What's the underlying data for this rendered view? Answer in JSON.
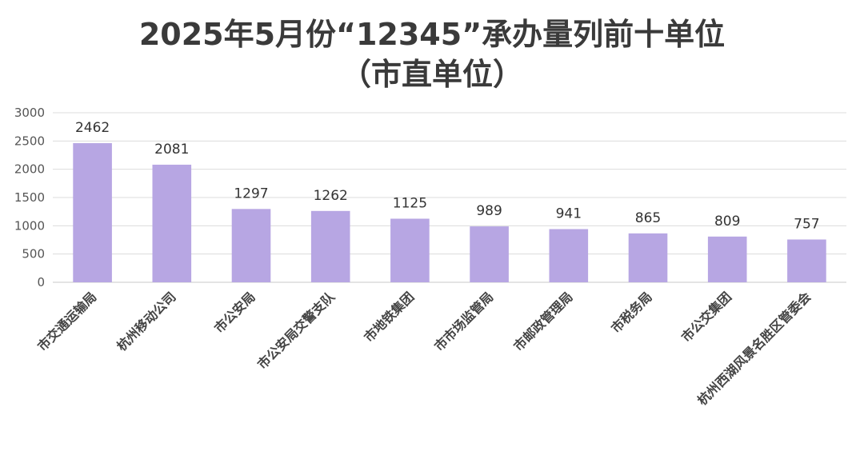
{
  "chart_data": {
    "type": "bar",
    "title": "2025年5月份“12345”承办量列前十单位",
    "subtitle": "（市直单位）",
    "categories": [
      "市交通运输局",
      "杭州移动公司",
      "市公安局",
      "市公安局交警支队",
      "市地铁集团",
      "市市场监管局",
      "市邮政管理局",
      "市税务局",
      "市公交集团",
      "杭州西湖风景名胜区管委会"
    ],
    "values": [
      2462,
      2081,
      1297,
      1262,
      1125,
      989,
      941,
      865,
      809,
      757
    ],
    "value_labels": [
      "2462",
      "2081",
      "1297",
      "1262",
      "1125",
      "989",
      "941",
      "865",
      "809",
      "757"
    ],
    "ylim": [
      0,
      3000
    ],
    "yticks": [
      "0",
      "500",
      "1000",
      "1500",
      "2000",
      "2500",
      "3000"
    ],
    "xlabel": "",
    "ylabel": "",
    "grid": true,
    "legend": "none",
    "bar_color": "#b7a6e3"
  }
}
